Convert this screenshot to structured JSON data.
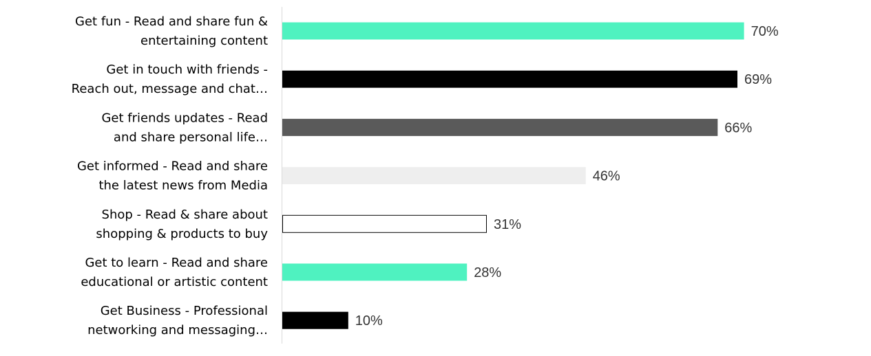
{
  "chart_data": {
    "type": "bar",
    "orientation": "horizontal",
    "categories": [
      [
        "Get fun - Read and share fun &",
        "entertaining content"
      ],
      [
        "Get in touch with friends -",
        "Reach out, message and chat…"
      ],
      [
        "Get friends updates - Read",
        "and share personal life…"
      ],
      [
        "Get informed - Read and share",
        "the latest news from Media"
      ],
      [
        "Shop - Read & share about",
        "shopping & products to buy"
      ],
      [
        "Get to learn - Read and share",
        "educational or artistic content"
      ],
      [
        "Get Business - Professional",
        "networking and messaging…"
      ]
    ],
    "values": [
      70,
      69,
      66,
      46,
      31,
      28,
      10
    ],
    "value_labels": [
      "70%",
      "69%",
      "66%",
      "46%",
      "31%",
      "28%",
      "10%"
    ],
    "bar_colors": [
      "#4ff2c0",
      "#000000",
      "#5a5a5a",
      "#eeeeee",
      "#ffffff",
      "#4ff2c0",
      "#000000"
    ],
    "bar_outline": [
      null,
      null,
      null,
      null,
      "#000000",
      null,
      null
    ],
    "xlim": [
      0,
      100
    ],
    "grid": false,
    "title": "",
    "xlabel": "",
    "ylabel": ""
  }
}
